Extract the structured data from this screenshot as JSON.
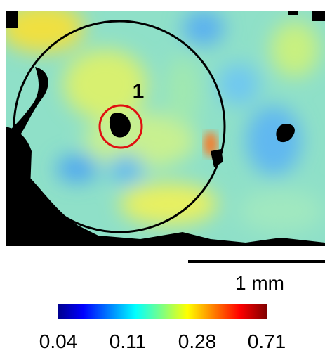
{
  "annotations": {
    "region_label": "1",
    "scale_bar": "1 mm"
  },
  "colorbar": {
    "ticks": [
      "0.04",
      "0.11",
      "0.28",
      "0.71"
    ]
  }
}
